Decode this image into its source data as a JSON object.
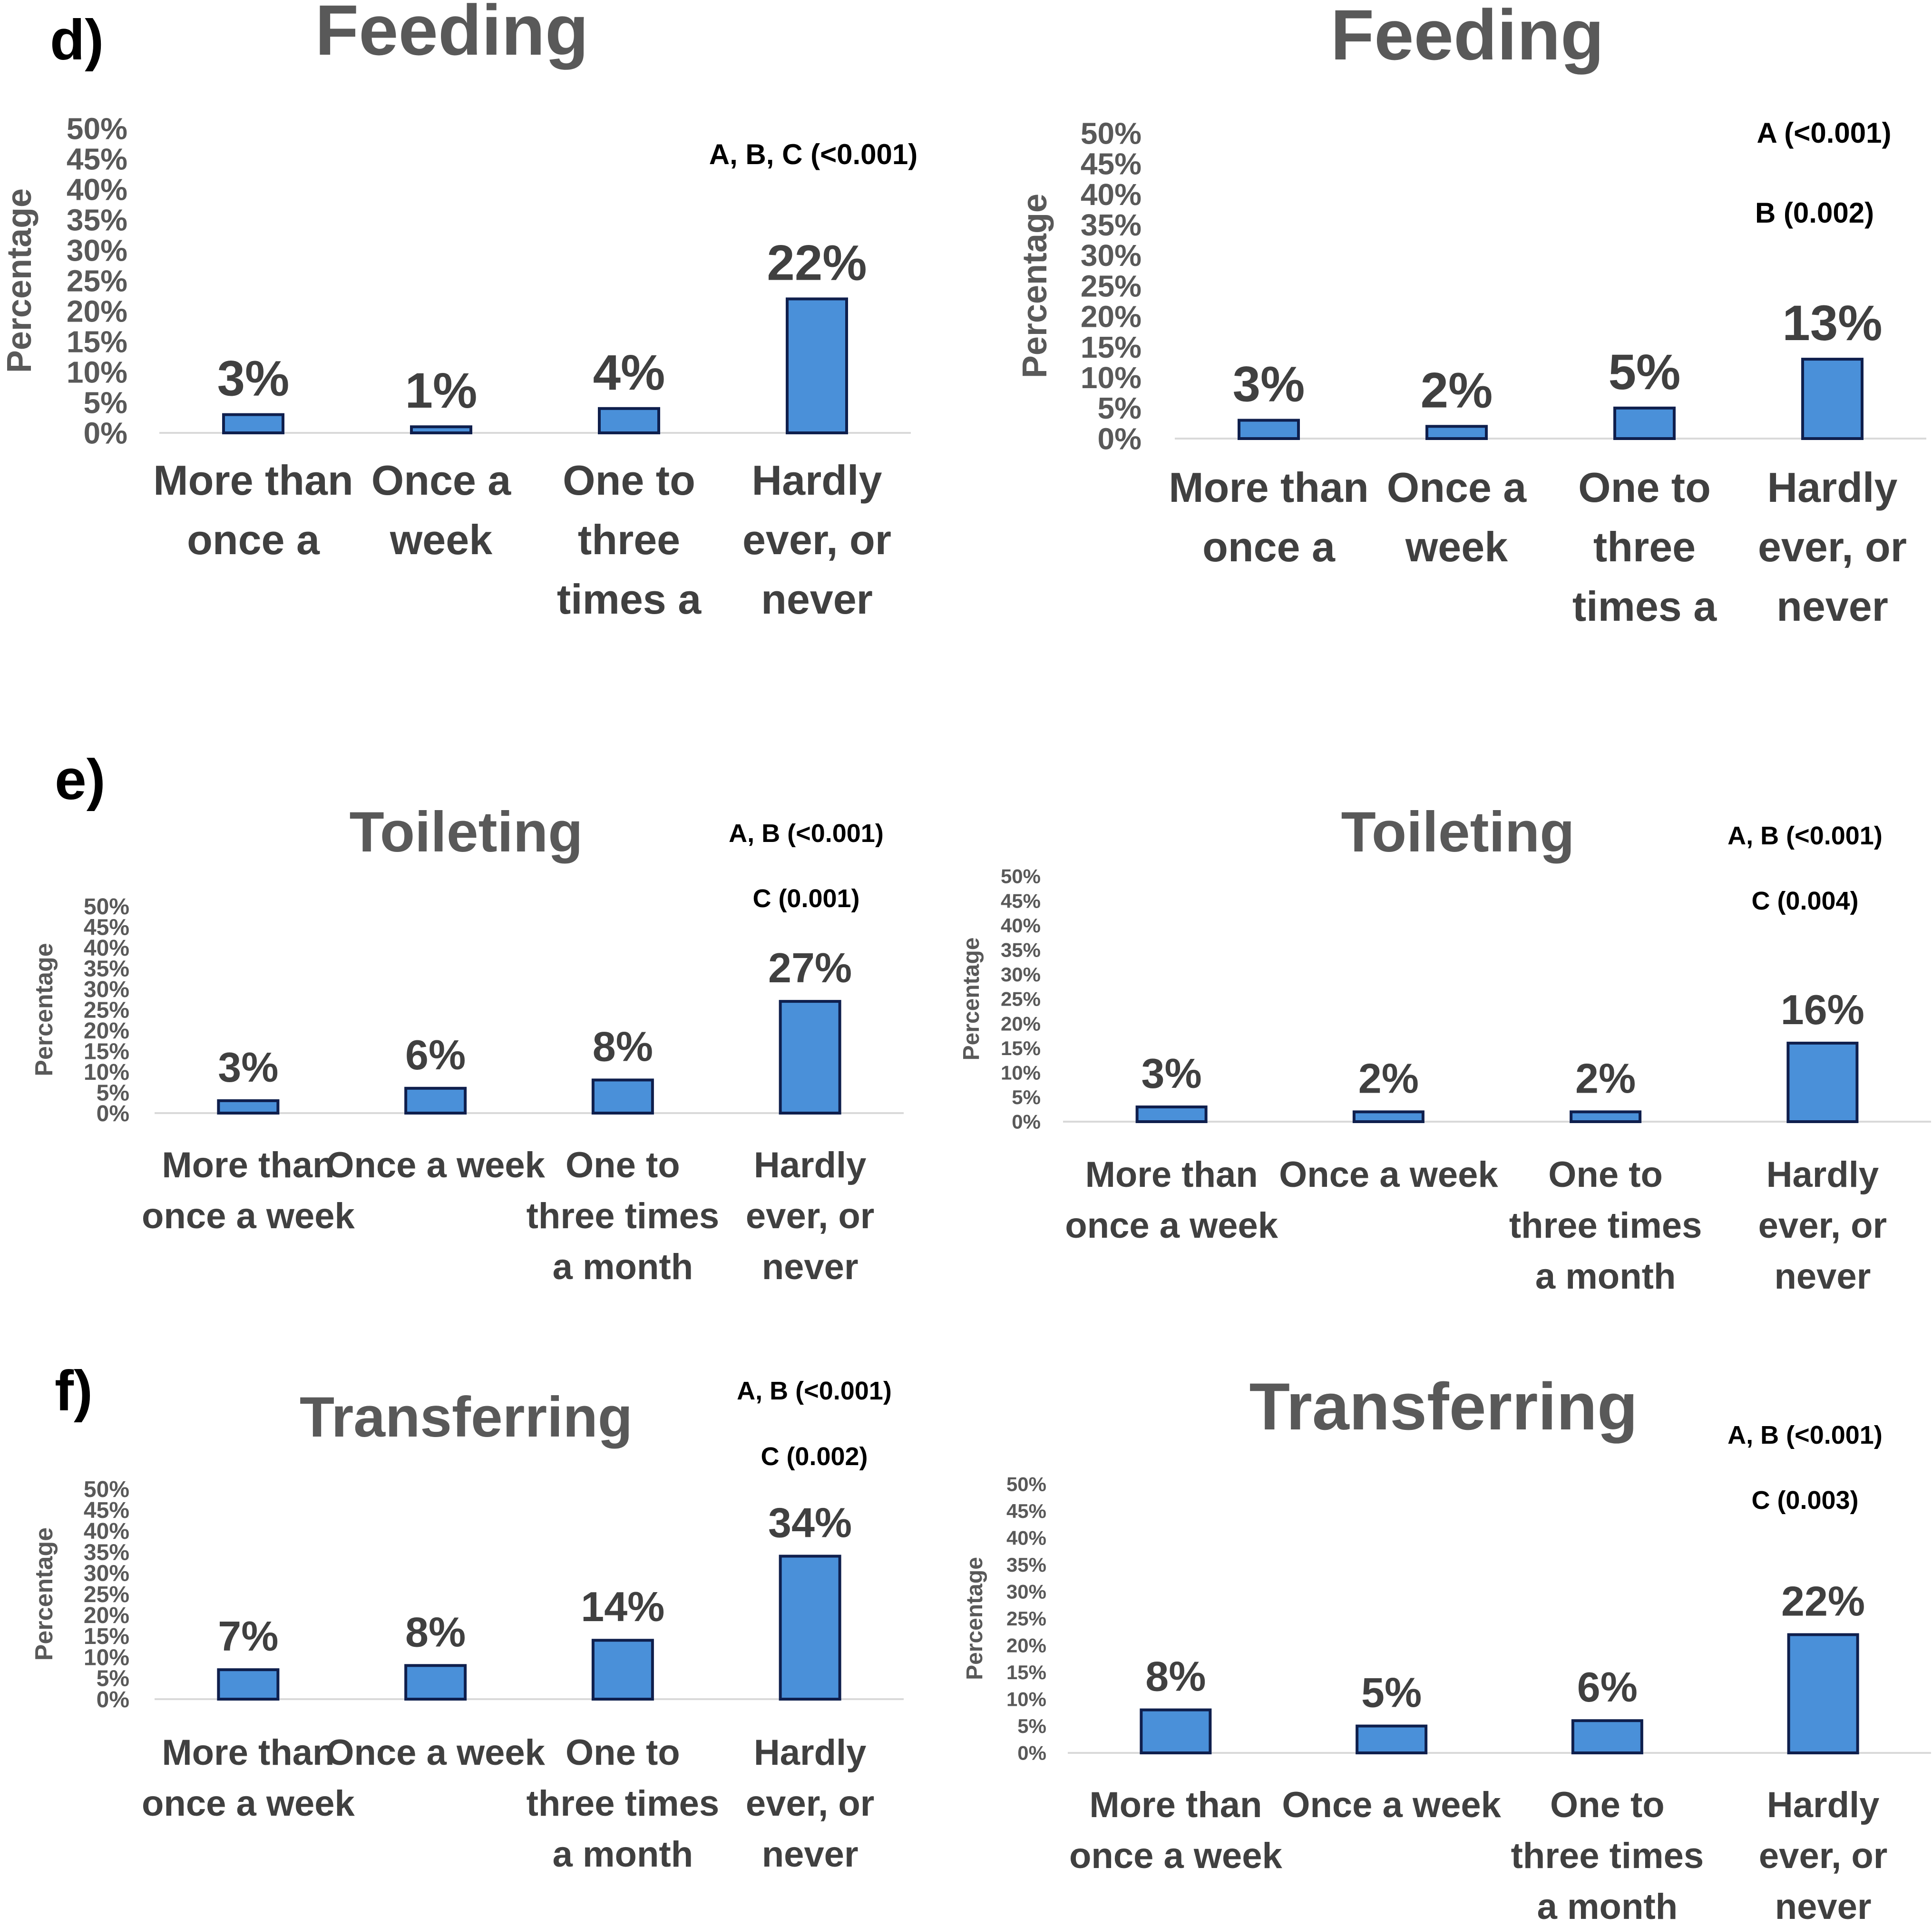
{
  "panel_labels": [
    "d)",
    "e)",
    "f)"
  ],
  "chart_data": [
    {
      "type": "bar",
      "title": "Feeding",
      "ylabel": "Percentage",
      "ylim": [
        0,
        50
      ],
      "yticks": [
        "0%",
        "5%",
        "10%",
        "15%",
        "20%",
        "25%",
        "30%",
        "35%",
        "40%",
        "45%",
        "50%"
      ],
      "categories": [
        "More than once a",
        "Once a week",
        "One to three times a",
        "Hardly ever, or never"
      ],
      "values": [
        3,
        1,
        4,
        22
      ],
      "data_labels": [
        "3%",
        "1%",
        "4%",
        "22%"
      ],
      "annotations": [
        "A, B, C (<0.001)"
      ]
    },
    {
      "type": "bar",
      "title": "Feeding",
      "ylabel": "Percentage",
      "ylim": [
        0,
        50
      ],
      "yticks": [
        "0%",
        "5%",
        "10%",
        "15%",
        "20%",
        "25%",
        "30%",
        "35%",
        "40%",
        "45%",
        "50%"
      ],
      "categories": [
        "More than once a",
        "Once a week",
        "One to three times a",
        "Hardly ever, or never"
      ],
      "values": [
        3,
        2,
        5,
        13
      ],
      "data_labels": [
        "3%",
        "2%",
        "5%",
        "13%"
      ],
      "annotations": [
        "A (<0.001)",
        "B (0.002)"
      ]
    },
    {
      "type": "bar",
      "title": "Toileting",
      "ylabel": "Percentage",
      "ylim": [
        0,
        50
      ],
      "yticks": [
        "0%",
        "5%",
        "10%",
        "15%",
        "20%",
        "25%",
        "30%",
        "35%",
        "40%",
        "45%",
        "50%"
      ],
      "categories": [
        "More than once a week",
        "Once a week",
        "One to three times a month",
        "Hardly ever, or never"
      ],
      "values": [
        3,
        6,
        8,
        27
      ],
      "data_labels": [
        "3%",
        "6%",
        "8%",
        "27%"
      ],
      "annotations": [
        "A, B (<0.001)",
        "C (0.001)"
      ]
    },
    {
      "type": "bar",
      "title": "Toileting",
      "ylabel": "Percentage",
      "ylim": [
        0,
        50
      ],
      "yticks": [
        "0%",
        "5%",
        "10%",
        "15%",
        "20%",
        "25%",
        "30%",
        "35%",
        "40%",
        "45%",
        "50%"
      ],
      "categories": [
        "More than once a week",
        "Once a week",
        "One to three times a month",
        "Hardly ever, or never"
      ],
      "values": [
        3,
        2,
        2,
        16
      ],
      "data_labels": [
        "3%",
        "2%",
        "2%",
        "16%"
      ],
      "annotations": [
        "A, B (<0.001)",
        "C (0.004)"
      ]
    },
    {
      "type": "bar",
      "title": "Transferring",
      "ylabel": "Percentage",
      "ylim": [
        0,
        50
      ],
      "yticks": [
        "0%",
        "5%",
        "10%",
        "15%",
        "20%",
        "25%",
        "30%",
        "35%",
        "40%",
        "45%",
        "50%"
      ],
      "categories": [
        "More than once a week",
        "Once a week",
        "One to three times a month",
        "Hardly ever, or never"
      ],
      "values": [
        7,
        8,
        14,
        34
      ],
      "data_labels": [
        "7%",
        "8%",
        "14%",
        "34%"
      ],
      "annotations": [
        "A, B (<0.001)",
        "C (0.002)"
      ]
    },
    {
      "type": "bar",
      "title": "Transferring",
      "ylabel": "Percentage",
      "ylim": [
        0,
        50
      ],
      "yticks": [
        "0%",
        "5%",
        "10%",
        "15%",
        "20%",
        "25%",
        "30%",
        "35%",
        "40%",
        "45%",
        "50%"
      ],
      "categories": [
        "More than once a week",
        "Once a week",
        "One to three times a month",
        "Hardly ever, or never"
      ],
      "values": [
        8,
        5,
        6,
        22
      ],
      "data_labels": [
        "8%",
        "5%",
        "6%",
        "22%"
      ],
      "annotations": [
        "A, B (<0.001)",
        "C (0.003)"
      ]
    }
  ]
}
